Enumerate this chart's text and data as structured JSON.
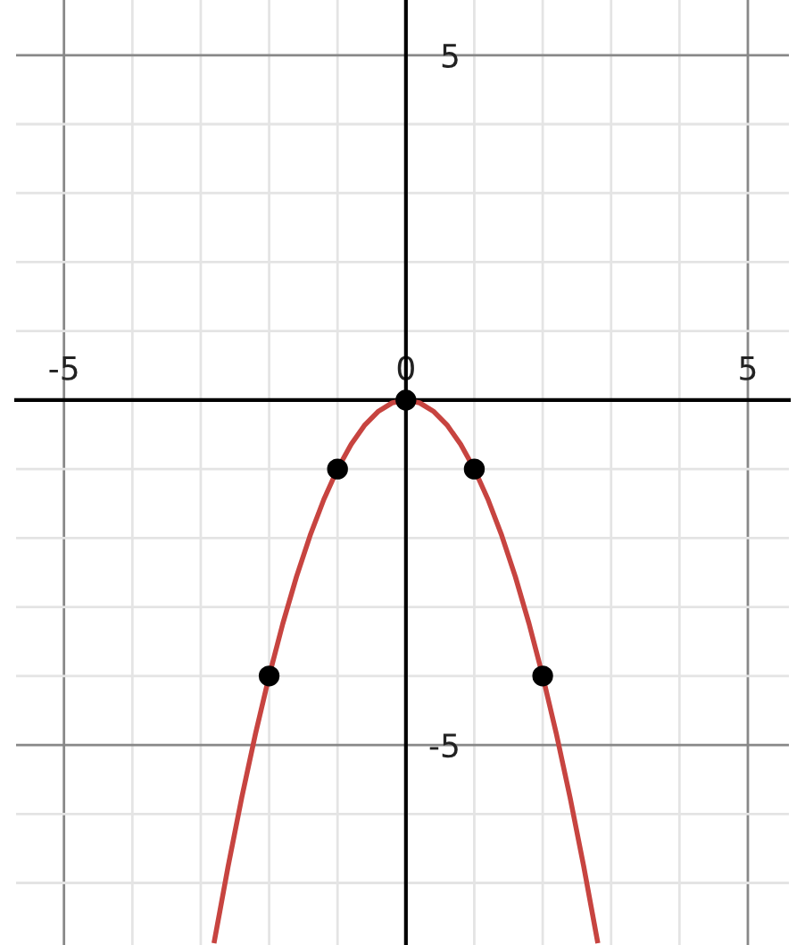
{
  "chart_data": {
    "type": "line",
    "series": [
      {
        "marker": "none",
        "color": "#c74440",
        "x": [
          -2.8,
          -2.6,
          -2.4,
          -2.2,
          -2.0,
          -1.8,
          -1.6,
          -1.4,
          -1.2,
          -1.0,
          -0.8,
          -0.6,
          -0.4,
          -0.2,
          0.0,
          0.2,
          0.4,
          0.6,
          0.8,
          1.0,
          1.2,
          1.4,
          1.6,
          1.8,
          2.0,
          2.2,
          2.4,
          2.6,
          2.8
        ],
        "values": [
          -7.84,
          -6.76,
          -5.76,
          -4.84,
          -4.0,
          -3.24,
          -2.56,
          -1.96,
          -1.44,
          -1.0,
          -0.64,
          -0.36,
          -0.16,
          -0.04,
          0.0,
          -0.04,
          -0.16,
          -0.36,
          -0.64,
          -1.0,
          -1.44,
          -1.96,
          -2.56,
          -3.24,
          -4.0,
          -4.84,
          -5.76,
          -6.76,
          -7.84
        ]
      },
      {
        "type": "scatter",
        "marker": "circle",
        "color": "#000000",
        "x": [
          -2,
          -1,
          0,
          1,
          2
        ],
        "values": [
          -4,
          -1,
          0,
          -1,
          -4
        ]
      }
    ],
    "xlim": [
      -5.7,
      5.6
    ],
    "ylim": [
      -7.9,
      5.8
    ],
    "xticks": [
      {
        "value": -5,
        "label": "-5"
      },
      {
        "value": -4,
        "label": null
      },
      {
        "value": -3,
        "label": null
      },
      {
        "value": -2,
        "label": null
      },
      {
        "value": -1,
        "label": null
      },
      0,
      {
        "value": 1,
        "label": null
      },
      {
        "value": 2,
        "label": null
      },
      {
        "value": 3,
        "label": null
      },
      {
        "value": 4,
        "label": null
      },
      5
    ],
    "yticks": [
      {
        "value": -7,
        "label": null
      },
      {
        "value": -6,
        "label": null
      },
      {
        "value": -5,
        "label": "-5"
      },
      {
        "value": -4,
        "label": null
      },
      {
        "value": -3,
        "label": null
      },
      {
        "value": -2,
        "label": null
      },
      {
        "value": -1,
        "label": null
      },
      {
        "value": 1,
        "label": null
      },
      {
        "value": 2,
        "label": null
      },
      {
        "value": 3,
        "label": null
      },
      {
        "value": 4,
        "label": null
      },
      5
    ],
    "grid": true
  }
}
